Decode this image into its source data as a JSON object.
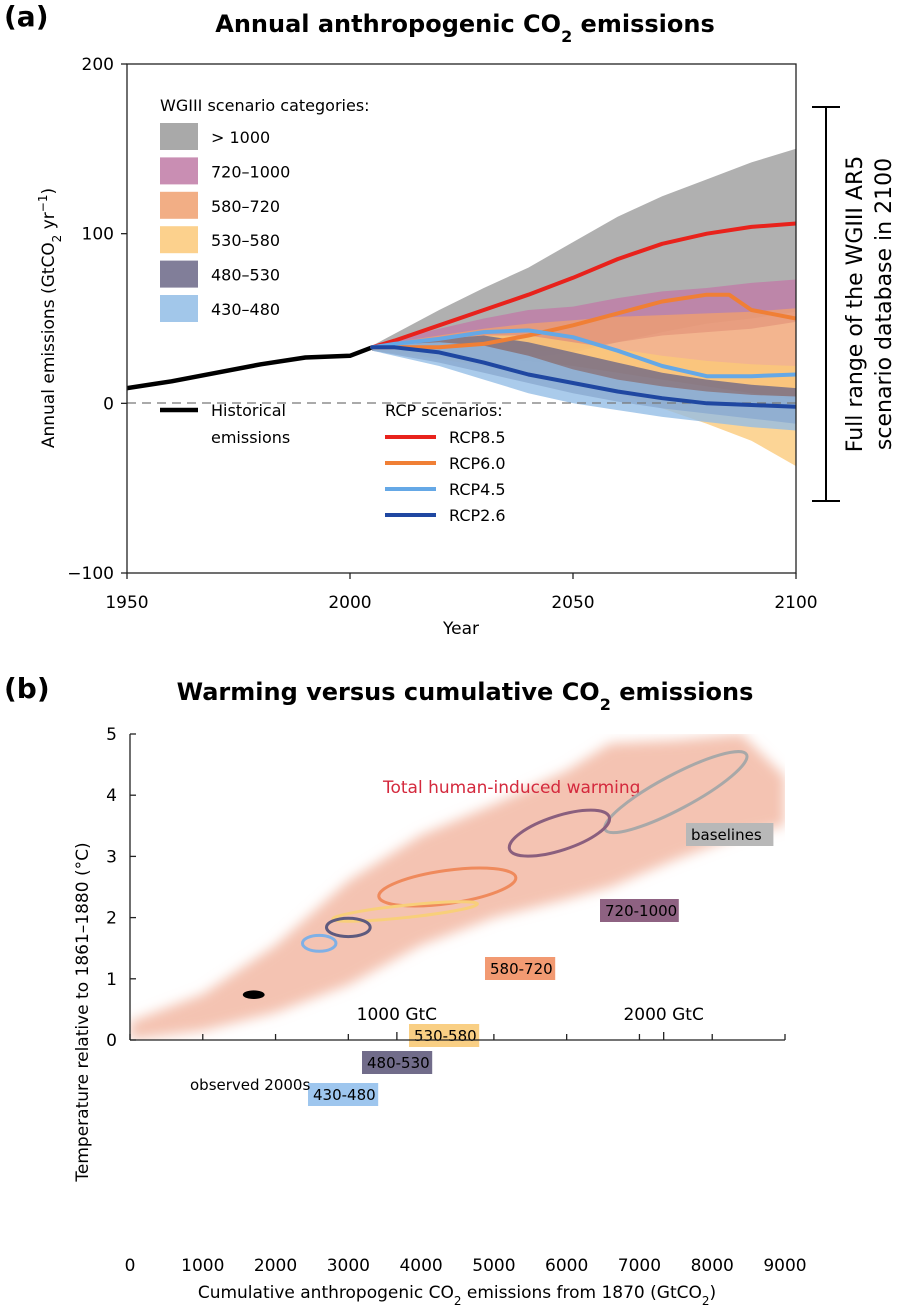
{
  "panels": {
    "a": {
      "label": "(a)",
      "title_pre": "Annual anthropogenic CO",
      "title_sub": "2",
      "title_post": " emissions"
    },
    "b": {
      "label": "(b)",
      "title_pre": "Warming versus cumulative CO",
      "title_sub": "2",
      "title_post": " emissions"
    }
  },
  "chart_data": [
    {
      "type": "area",
      "title": "Annual anthropogenic CO2 emissions",
      "xlabel": "Year",
      "ylabel": "Annual emissions (GtCO2 yr-1)",
      "ylabel_parts": {
        "pre": "Annual emissions (GtCO",
        "sub": "2",
        "mid": " yr",
        "sup": "−1",
        "post": ")"
      },
      "xlim": [
        1950,
        2100
      ],
      "ylim": [
        -100,
        200
      ],
      "xticks": [
        1950,
        2000,
        2050,
        2100
      ],
      "yticks": [
        -100,
        0,
        100,
        200
      ],
      "ytick_labels": [
        "−100",
        "0",
        "100",
        "200"
      ],
      "zero_line": "dashed",
      "legend_bands_title": "WGIII scenario categories:",
      "legend_lines_title": "RCP scenarios:",
      "historical": {
        "name": "Historical emissions",
        "name_lines": [
          "Historical",
          "emissions"
        ],
        "color": "#000000",
        "x": [
          1950,
          1960,
          1970,
          1980,
          1990,
          2000,
          2005
        ],
        "y": [
          9,
          13,
          18,
          23,
          27,
          28,
          33
        ]
      },
      "bands": [
        {
          "name": "> 1000",
          "color": "#9a9a9a",
          "x": [
            2005,
            2020,
            2030,
            2040,
            2050,
            2060,
            2070,
            2080,
            2090,
            2100
          ],
          "lower": [
            31,
            27,
            25,
            27,
            30,
            36,
            42,
            47,
            50,
            54
          ],
          "upper": [
            34,
            55,
            68,
            80,
            95,
            110,
            122,
            132,
            142,
            150
          ]
        },
        {
          "name": "720–1000",
          "color": "#c07aa6",
          "x": [
            2005,
            2020,
            2030,
            2040,
            2050,
            2060,
            2070,
            2080,
            2090,
            2100
          ],
          "lower": [
            31,
            28,
            28,
            30,
            32,
            36,
            40,
            42,
            44,
            48
          ],
          "upper": [
            34,
            44,
            50,
            55,
            57,
            62,
            66,
            68,
            71,
            73
          ]
        },
        {
          "name": "580–720",
          "color": "#f0a070",
          "x": [
            2005,
            2020,
            2030,
            2040,
            2050,
            2060,
            2070,
            2080,
            2090,
            2100
          ],
          "lower": [
            31,
            28,
            27,
            25,
            22,
            18,
            14,
            10,
            6,
            2
          ],
          "upper": [
            34,
            40,
            44,
            47,
            49,
            51,
            52,
            53,
            54,
            56
          ]
        },
        {
          "name": "530–580",
          "color": "#fbc979",
          "x": [
            2005,
            2020,
            2030,
            2040,
            2050,
            2060,
            2070,
            2080,
            2090,
            2100
          ],
          "lower": [
            31,
            26,
            22,
            18,
            13,
            6,
            -3,
            -12,
            -22,
            -37
          ],
          "upper": [
            34,
            38,
            40,
            40,
            36,
            32,
            28,
            25,
            23,
            22
          ]
        },
        {
          "name": "480–530",
          "color": "#6b6787",
          "x": [
            2005,
            2020,
            2030,
            2040,
            2050,
            2060,
            2070,
            2080,
            2090,
            2100
          ],
          "lower": [
            31,
            24,
            18,
            12,
            6,
            1,
            -3,
            -6,
            -9,
            -12
          ],
          "upper": [
            34,
            38,
            40,
            36,
            30,
            24,
            18,
            14,
            11,
            9
          ]
        },
        {
          "name": "430–480",
          "color": "#92bde6",
          "x": [
            2005,
            2020,
            2030,
            2040,
            2050,
            2060,
            2070,
            2080,
            2090,
            2100
          ],
          "lower": [
            31,
            22,
            14,
            6,
            0,
            -4,
            -8,
            -11,
            -14,
            -16
          ],
          "upper": [
            34,
            36,
            34,
            28,
            20,
            14,
            10,
            7,
            5,
            4
          ]
        }
      ],
      "series": [
        {
          "name": "RCP8.5",
          "color": "#e8221c",
          "x": [
            2005,
            2010,
            2020,
            2030,
            2040,
            2050,
            2060,
            2070,
            2080,
            2090,
            2100
          ],
          "y": [
            33,
            37,
            46,
            55,
            64,
            74,
            85,
            94,
            100,
            104,
            106
          ]
        },
        {
          "name": "RCP6.0",
          "color": "#f07f35",
          "x": [
            2005,
            2010,
            2020,
            2030,
            2040,
            2050,
            2060,
            2070,
            2080,
            2085,
            2090,
            2100
          ],
          "y": [
            33,
            33,
            33,
            35,
            40,
            46,
            53,
            60,
            64,
            64,
            55,
            50
          ]
        },
        {
          "name": "RCP4.5",
          "color": "#65a8e6",
          "x": [
            2005,
            2010,
            2020,
            2030,
            2040,
            2050,
            2060,
            2070,
            2080,
            2090,
            2100
          ],
          "y": [
            33,
            35,
            38,
            42,
            43,
            39,
            31,
            22,
            16,
            16,
            17
          ]
        },
        {
          "name": "RCP2.6",
          "color": "#1f47a1",
          "x": [
            2005,
            2010,
            2020,
            2030,
            2040,
            2050,
            2060,
            2070,
            2080,
            2090,
            2100
          ],
          "y": [
            33,
            33,
            30,
            24,
            17,
            12,
            7,
            3,
            0,
            -1,
            -2
          ]
        }
      ],
      "range_bar": {
        "label_lines": [
          "Full range of the WGIII AR5",
          "scenario database in 2100"
        ],
        "min": -58,
        "max": 173
      }
    },
    {
      "type": "scatter",
      "title": "Warming versus cumulative CO2 emissions",
      "xlabel": "Cumulative anthropogenic CO2 emissions from 1870  (GtCO2)",
      "xlabel_parts": {
        "pre": "Cumulative anthropogenic CO",
        "sub1": "2",
        "mid": " emissions from 1870  (GtCO",
        "sub2": "2",
        "post": ")"
      },
      "ylabel": "Temperature relative to 1861–1880 (°C)",
      "xlim": [
        0,
        9000
      ],
      "ylim": [
        0,
        5
      ],
      "xticks": [
        0,
        1000,
        2000,
        3000,
        4000,
        5000,
        6000,
        7000,
        8000,
        9000
      ],
      "yticks": [
        0,
        1,
        2,
        3,
        4,
        5
      ],
      "band": {
        "label": "Total human-induced warming",
        "label_color": "#d4293d",
        "color": "#f2b8a5",
        "x": [
          0,
          1000,
          2000,
          3000,
          4000,
          5000,
          6000,
          6600,
          7500,
          8400,
          9000
        ],
        "lower": [
          0.0,
          0.15,
          0.45,
          0.9,
          1.55,
          2.0,
          2.3,
          2.5,
          2.95,
          3.35,
          3.5
        ],
        "upper": [
          0.3,
          0.75,
          1.55,
          2.6,
          3.35,
          3.85,
          4.4,
          4.85,
          4.9,
          5.0,
          4.3
        ]
      },
      "secondary_ticks": [
        {
          "label": "1000 GtC",
          "x": 3667
        },
        {
          "label": "2000 GtC",
          "x": 7333
        }
      ],
      "observed": {
        "label": "observed 2000s",
        "x": 1700,
        "y": 0.74,
        "rx": 150,
        "ry": 0.07,
        "color": "#000000"
      },
      "categories": [
        {
          "name": "baselines",
          "cx": 7500,
          "cy": 4.05,
          "rx": 1100,
          "ry": 0.28,
          "angle_deg": -28,
          "color": "#a8a8a8"
        },
        {
          "name": "720-1000",
          "cx": 5900,
          "cy": 3.38,
          "rx": 720,
          "ry": 0.28,
          "angle_deg": -18,
          "color": "#8a5f7e"
        },
        {
          "name": "580-720",
          "cx": 4360,
          "cy": 2.5,
          "rx": 950,
          "ry": 0.27,
          "angle_deg": -8,
          "color": "#ef8a5c"
        },
        {
          "name": "530-580",
          "cx": 3780,
          "cy": 2.1,
          "rx": 1000,
          "ry": 0.1,
          "angle_deg": -6,
          "color": "#f8cf7a"
        },
        {
          "name": "480-530",
          "cx": 3000,
          "cy": 1.84,
          "rx": 300,
          "ry": 0.15,
          "angle_deg": 0,
          "color": "#5e5a7e"
        },
        {
          "name": "430-480",
          "cx": 2600,
          "cy": 1.58,
          "rx": 230,
          "ry": 0.13,
          "angle_deg": 0,
          "color": "#7fb0e6"
        }
      ],
      "label_boxes": {
        "baselines": "#b8b8b8",
        "720-1000": "#8e6282",
        "580-720": "#f29a72",
        "530-580": "#f9cf84",
        "480-530": "#716c8a",
        "430-480": "#9ec6ee"
      }
    }
  ]
}
